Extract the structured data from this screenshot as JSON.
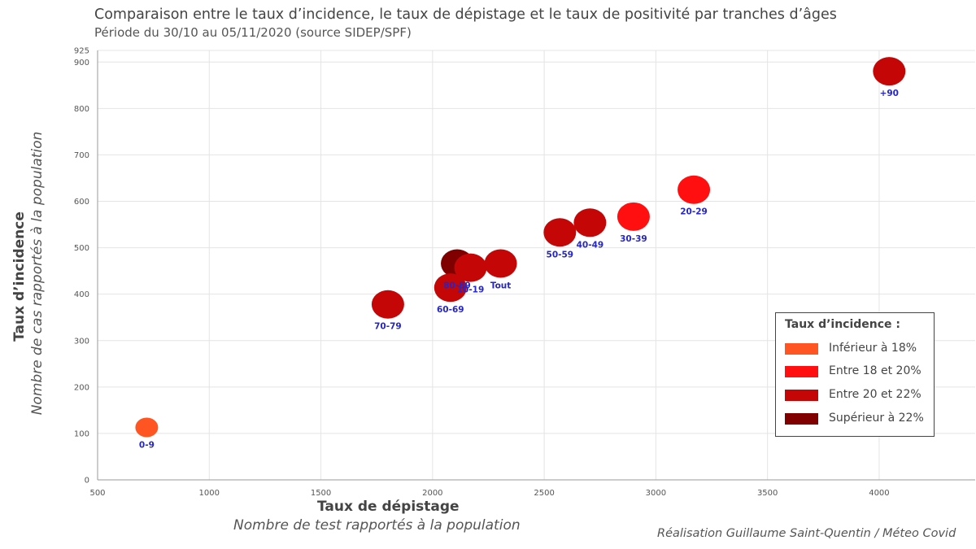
{
  "title": "Comparaison entre le taux d’incidence, le taux de dépistage et le taux de positivité par tranches d’âges",
  "subtitle": "Période du 30/10 au 05/11/2020 (source SIDEP/SPF)",
  "credit": "Réalisation Guillaume Saint-Quentin / Méteo Covid",
  "colors": {
    "inf18": "#ff5522",
    "18_20": "#ff0f0f",
    "20_22": "#c40606",
    "sup22": "#800000",
    "label": "#2525c9",
    "grid": "#e4e4e4"
  },
  "chart_data": {
    "type": "scatter",
    "title": "Comparaison entre le taux d’incidence, le taux de dépistage et le taux de positivité par tranches d’âges",
    "subtitle": "Période du 30/10 au 05/11/2020 (source SIDEP/SPF)",
    "xlabel": "Taux de dépistage",
    "xlabel_sub": "Nombre de test rapportés à la population",
    "ylabel": "Taux d’incidence",
    "ylabel_sub": "Nombre de cas rapportés à la population",
    "xlim": [
      500,
      4430
    ],
    "ylim": [
      0,
      925
    ],
    "xticks": [
      500,
      1000,
      1500,
      2000,
      2500,
      3000,
      3500,
      4000
    ],
    "yticks": [
      0,
      100,
      200,
      300,
      400,
      500,
      600,
      700,
      800,
      900,
      925
    ],
    "grid": true,
    "legend_position": "bottom-right",
    "legend": {
      "title": "Taux d’incidence :",
      "items": [
        {
          "label": "Inférieur à 18%",
          "color": "#ff5522"
        },
        {
          "label": "Entre 18 et 20%",
          "color": "#ff0f0f"
        },
        {
          "label": "Entre 20 et 22%",
          "color": "#c40606"
        },
        {
          "label": "Supérieur à 22%",
          "color": "#800000"
        }
      ]
    },
    "points": [
      {
        "label": "0-9",
        "x": 720,
        "y": 113,
        "category": "inf18"
      },
      {
        "label": "70-79",
        "x": 1800,
        "y": 378,
        "category": "20_22"
      },
      {
        "label": "80-89",
        "x": 2110,
        "y": 466,
        "category": "sup22"
      },
      {
        "label": "60-69",
        "x": 2080,
        "y": 414,
        "category": "20_22"
      },
      {
        "label": "10-19",
        "x": 2170,
        "y": 457,
        "category": "20_22"
      },
      {
        "label": "Tout",
        "x": 2305,
        "y": 466,
        "category": "20_22"
      },
      {
        "label": "50-59",
        "x": 2570,
        "y": 533,
        "category": "20_22"
      },
      {
        "label": "40-49",
        "x": 2705,
        "y": 554,
        "category": "20_22"
      },
      {
        "label": "30-39",
        "x": 2900,
        "y": 567,
        "category": "18_20"
      },
      {
        "label": "20-29",
        "x": 3170,
        "y": 625,
        "category": "18_20"
      },
      {
        "label": "+90",
        "x": 4045,
        "y": 880,
        "category": "20_22"
      }
    ]
  }
}
